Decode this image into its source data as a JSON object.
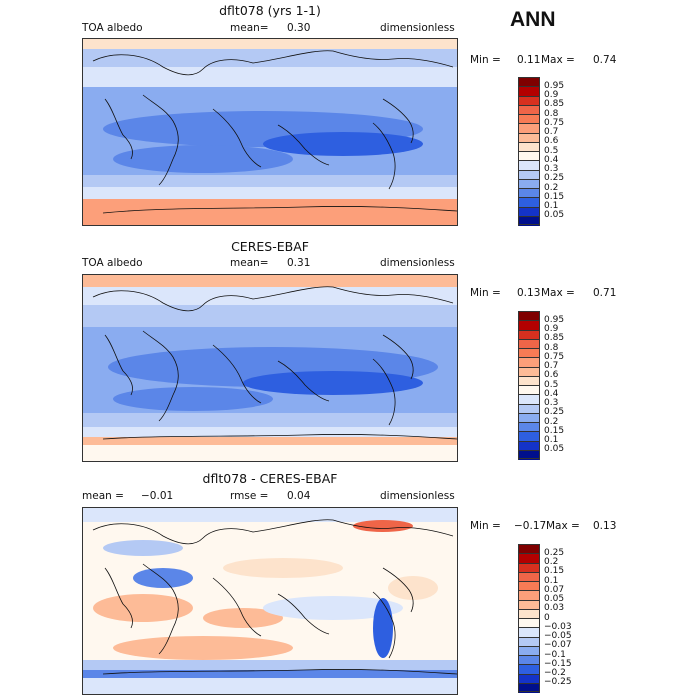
{
  "season_label": "ANN",
  "panels": [
    {
      "title": "dflt078 (yrs 1-1)",
      "left_text": "TOA albedo",
      "mean_label": "mean=",
      "mean_value": "0.30",
      "right_text": "dimensionless",
      "min_label": "Min =",
      "min_value": "0.11",
      "max_label": "Max =",
      "max_value": "0.74",
      "colorbar": {
        "levels": [
          "0.95",
          "0.9",
          "0.85",
          "0.8",
          "0.75",
          "0.7",
          "0.6",
          "0.5",
          "0.4",
          "0.3",
          "0.25",
          "0.2",
          "0.15",
          "0.1",
          "0.05"
        ],
        "colors": [
          "#7f0000",
          "#b30000",
          "#d7301f",
          "#ef6548",
          "#f77b55",
          "#fc9f7a",
          "#fdbb97",
          "#fde3cc",
          "#fff8ef",
          "#dbe6fb",
          "#b4c9f4",
          "#8aacf0",
          "#5b86e8",
          "#2e5fe0",
          "#1433c8",
          "#000f8c"
        ]
      }
    },
    {
      "title": "CERES-EBAF",
      "left_text": "TOA albedo",
      "mean_label": "mean=",
      "mean_value": "0.31",
      "right_text": "dimensionless",
      "min_label": "Min =",
      "min_value": "0.13",
      "max_label": "Max =",
      "max_value": "0.71",
      "colorbar": {
        "levels": [
          "0.95",
          "0.9",
          "0.85",
          "0.8",
          "0.75",
          "0.7",
          "0.6",
          "0.5",
          "0.4",
          "0.3",
          "0.25",
          "0.2",
          "0.15",
          "0.1",
          "0.05"
        ],
        "colors": [
          "#7f0000",
          "#b30000",
          "#d7301f",
          "#ef6548",
          "#f77b55",
          "#fc9f7a",
          "#fdbb97",
          "#fde3cc",
          "#fff8ef",
          "#dbe6fb",
          "#b4c9f4",
          "#8aacf0",
          "#5b86e8",
          "#2e5fe0",
          "#1433c8",
          "#000f8c"
        ]
      }
    },
    {
      "title": "dflt078 - CERES-EBAF",
      "left_text": "mean =",
      "mean_label": "rmse =",
      "mean_value": "0.04",
      "left_value": "−0.01",
      "right_text": "dimensionless",
      "min_label": "Min =",
      "min_value": "−0.17",
      "max_label": "Max =",
      "max_value": "0.13",
      "colorbar": {
        "levels": [
          "0.25",
          "0.2",
          "0.15",
          "0.1",
          "0.07",
          "0.05",
          "0.03",
          "0",
          "−0.03",
          "−0.05",
          "−0.07",
          "−0.1",
          "−0.15",
          "−0.2",
          "−0.25"
        ],
        "colors": [
          "#7f0000",
          "#b30000",
          "#d7301f",
          "#ef6548",
          "#f77b55",
          "#fc9f7a",
          "#fdbb97",
          "#fde3cc",
          "#fff8ef",
          "#dbe6fb",
          "#b4c9f4",
          "#8aacf0",
          "#5b86e8",
          "#2e5fe0",
          "#1433c8",
          "#000f8c"
        ]
      }
    }
  ]
}
